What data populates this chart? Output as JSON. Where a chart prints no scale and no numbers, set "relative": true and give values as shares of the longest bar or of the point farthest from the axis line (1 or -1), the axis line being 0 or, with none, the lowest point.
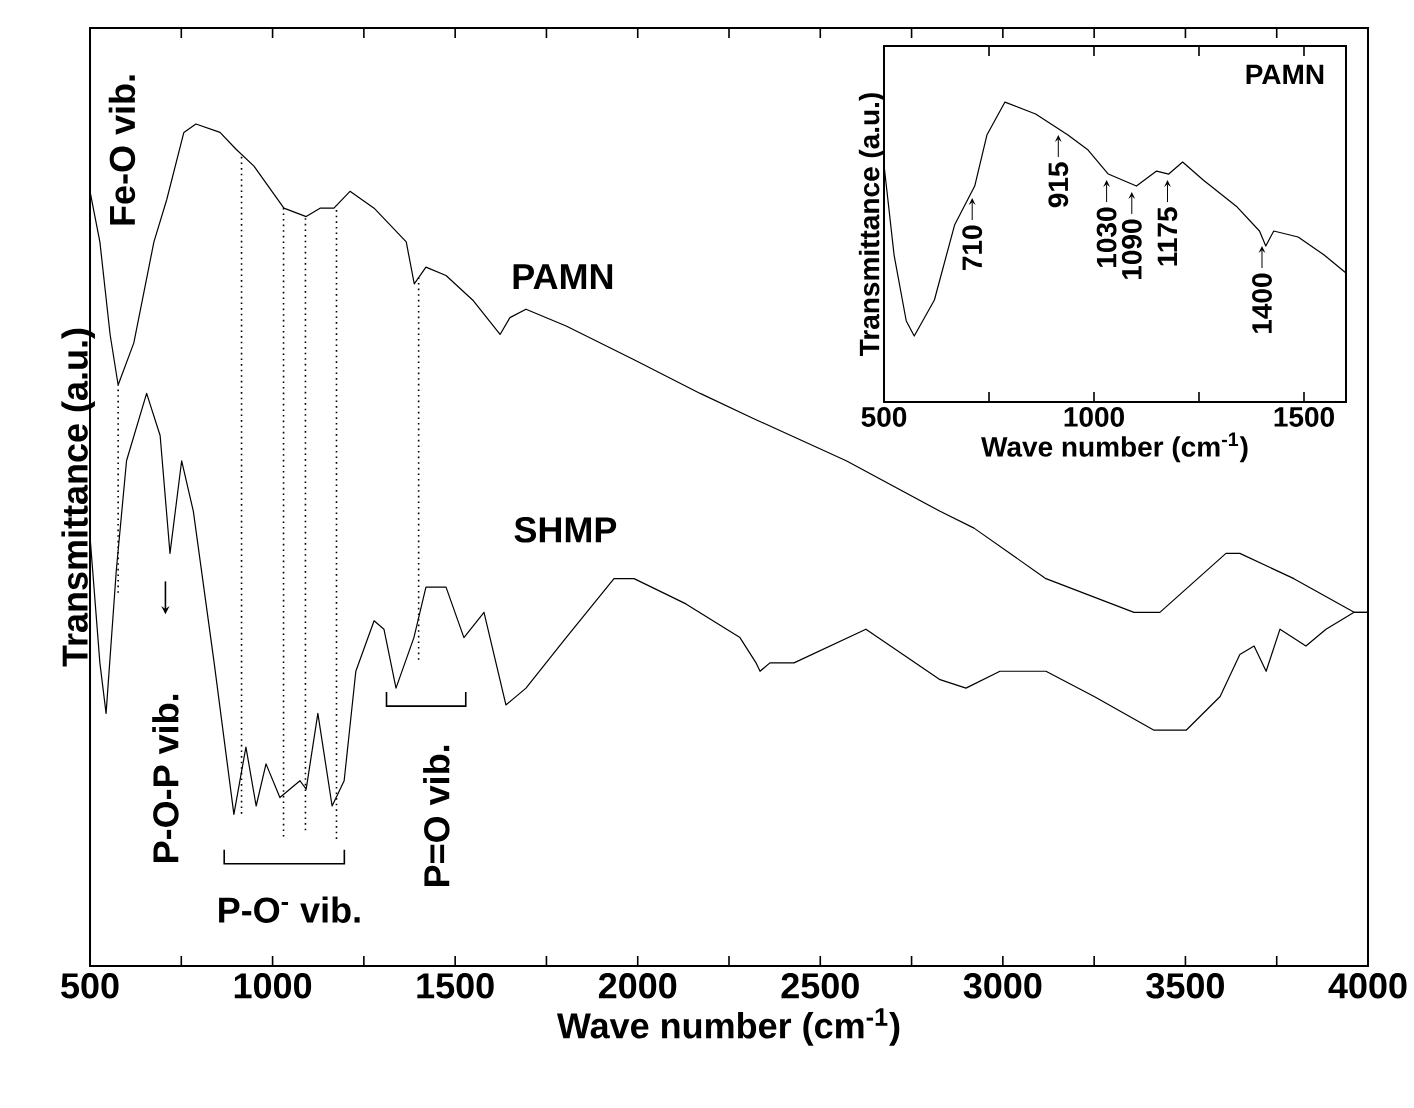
{
  "chart_data": [
    {
      "type": "line",
      "relative": true,
      "xlabel": "Wave number (cm$^{-1}$)",
      "ylabel": "Transmittance (a.u.)",
      "xlim": [
        500,
        4000
      ],
      "xticks": [
        500,
        {
          "value": 750,
          "label": null
        },
        1000,
        {
          "value": 1250,
          "label": null
        },
        1500,
        {
          "value": 1750,
          "label": null
        },
        2000,
        {
          "value": 2250,
          "label": null
        },
        2500,
        {
          "value": 2750,
          "label": null
        },
        3000,
        {
          "value": 3250,
          "label": null
        },
        3500,
        {
          "value": 3750,
          "label": null
        },
        4000
      ],
      "tick_labels": "x",
      "line_style": "solid",
      "series": [
        {
          "name": "PAMN",
          "color": "#000000",
          "x": [
            500,
            527,
            555,
            577,
            620,
            675,
            710,
            757,
            790,
            856,
            900,
            949,
            1031,
            1092,
            1130,
            1168,
            1212,
            1278,
            1366,
            1388,
            1420,
            1475,
            1550,
            1623,
            1650,
            1694,
            1804,
            1990,
            2171,
            2318,
            2571,
            2828,
            2921,
            3118,
            3359,
            3430,
            3611,
            3649,
            3797,
            3962,
            4000
          ],
          "values": [
            0.92,
            0.86,
            0.75,
            0.69,
            0.74,
            0.86,
            0.91,
            0.99,
            1.0,
            0.99,
            0.97,
            0.95,
            0.9,
            0.89,
            0.9,
            0.9,
            0.92,
            0.9,
            0.86,
            0.81,
            0.83,
            0.82,
            0.79,
            0.75,
            0.77,
            0.78,
            0.76,
            0.72,
            0.68,
            0.65,
            0.6,
            0.54,
            0.52,
            0.46,
            0.42,
            0.42,
            0.49,
            0.49,
            0.46,
            0.42,
            0.42
          ]
        },
        {
          "name": "SHMP",
          "color": "#000000",
          "x": [
            500,
            527,
            544,
            572,
            600,
            655,
            692,
            719,
            751,
            783,
            840,
            894,
            927,
            955,
            982,
            1020,
            1075,
            1092,
            1124,
            1163,
            1196,
            1228,
            1278,
            1305,
            1338,
            1387,
            1420,
            1475,
            1524,
            1579,
            1639,
            1694,
            1804,
            1935,
            1990,
            2132,
            2280,
            2324,
            2335,
            2362,
            2428,
            2625,
            2828,
            2899,
            2992,
            3118,
            3250,
            3414,
            3502,
            3595,
            3649,
            3688,
            3721,
            3759,
            3830,
            3885,
            3962,
            4000
          ],
          "values": [
            0.51,
            0.36,
            0.3,
            0.47,
            0.6,
            0.68,
            0.63,
            0.49,
            0.6,
            0.54,
            0.36,
            0.18,
            0.26,
            0.19,
            0.24,
            0.2,
            0.22,
            0.21,
            0.3,
            0.19,
            0.22,
            0.35,
            0.41,
            0.4,
            0.33,
            0.39,
            0.45,
            0.45,
            0.39,
            0.42,
            0.31,
            0.33,
            0.39,
            0.46,
            0.46,
            0.43,
            0.39,
            0.36,
            0.35,
            0.36,
            0.36,
            0.4,
            0.34,
            0.33,
            0.35,
            0.35,
            0.32,
            0.28,
            0.28,
            0.32,
            0.37,
            0.38,
            0.35,
            0.4,
            0.38,
            0.4,
            0.42,
            0.42
          ]
        }
      ],
      "ref_lines": [
        {
          "axis": "x",
          "value": 577,
          "color": "#000000",
          "line_style": "dotted"
        },
        {
          "axis": "x",
          "value": 915,
          "color": "#000000",
          "line_style": "dotted"
        },
        {
          "axis": "x",
          "value": 1030,
          "color": "#000000",
          "line_style": "dotted"
        },
        {
          "axis": "x",
          "value": 1090,
          "color": "#000000",
          "line_style": "dotted"
        },
        {
          "axis": "x",
          "value": 1175,
          "color": "#000000",
          "line_style": "dotted"
        },
        {
          "axis": "x",
          "value": 1400,
          "color": "#000000",
          "line_style": "dotted"
        }
      ],
      "annotations": [
        "Fe-O vib.",
        "P-O-P vib.",
        "P-O$^{-}$ vib.",
        "P=O vib."
      ]
    },
    {
      "type": "line",
      "relative": true,
      "xlabel": "Wave number (cm$^{-1}$)",
      "ylabel": "Transmittance (a.u.)",
      "xlim": [
        500,
        1600
      ],
      "xticks": [
        500,
        {
          "value": 750,
          "label": null
        },
        1000,
        {
          "value": 1250,
          "label": null
        },
        1500
      ],
      "tick_labels": "x",
      "legend": "top right",
      "line_style": "solid",
      "series": [
        {
          "name": "PAMN",
          "color": "#000000",
          "x": [
            500,
            524,
            553,
            572,
            620,
            668,
            716,
            745,
            788,
            861,
            938,
            986,
            1034,
            1101,
            1149,
            1178,
            1211,
            1260,
            1341,
            1394,
            1409,
            1428,
            1486,
            1548,
            1600
          ],
          "values": [
            0.79,
            0.49,
            0.27,
            0.22,
            0.34,
            0.59,
            0.72,
            0.89,
            1.0,
            0.96,
            0.89,
            0.84,
            0.76,
            0.72,
            0.77,
            0.76,
            0.8,
            0.74,
            0.65,
            0.57,
            0.52,
            0.57,
            0.55,
            0.49,
            0.43
          ]
        }
      ],
      "annotations": [
        {
          "text": "710",
          "x": 710,
          "y": 0.7
        },
        {
          "text": "915",
          "x": 915,
          "y": 0.91
        },
        {
          "text": "1030",
          "x": 1030,
          "y": 0.76
        },
        {
          "text": "1090",
          "x": 1090,
          "y": 0.72
        },
        {
          "text": "1175",
          "x": 1175,
          "y": 0.76
        },
        {
          "text": "1400",
          "x": 1400,
          "y": 0.54
        }
      ]
    }
  ]
}
